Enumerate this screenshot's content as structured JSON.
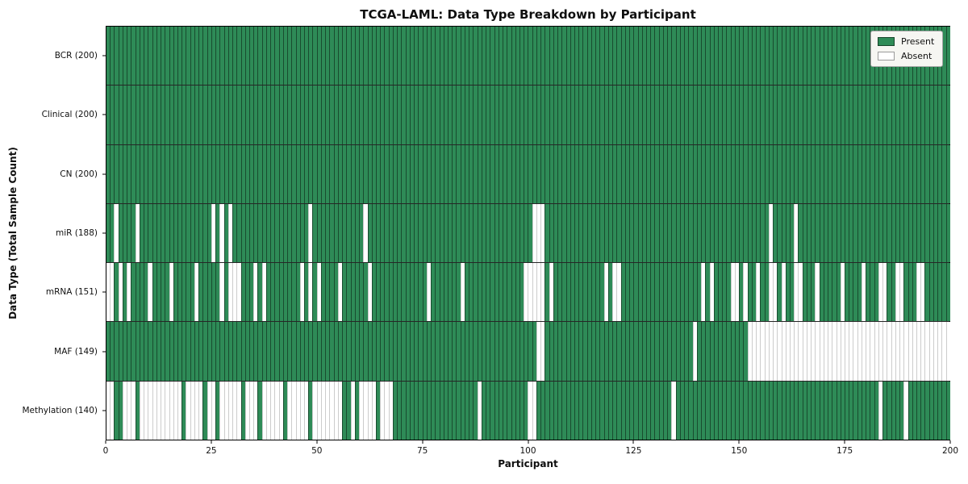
{
  "title": "TCGA-LAML: Data Type Breakdown by Participant",
  "xlabel": "Participant",
  "ylabel": "Data Type (Total Sample Count)",
  "legend": {
    "present_label": "Present",
    "absent_label": "Absent"
  },
  "colors": {
    "present": "#2e8b57",
    "absent": "#ffffff",
    "plot_border": "#000000",
    "legend_background": "#f6f6f2"
  },
  "chart_data": {
    "type": "heatmap",
    "title": "TCGA-LAML: Data Type Breakdown by Participant",
    "xlabel": "Participant",
    "ylabel": "Data Type (Total Sample Count)",
    "legend_entries": [
      "Present",
      "Absent"
    ],
    "legend_position": "upper right",
    "n_participants": 200,
    "x_range": [
      0,
      200
    ],
    "x_ticks": [
      0,
      25,
      50,
      75,
      100,
      125,
      150,
      175,
      200
    ],
    "rows": [
      {
        "label": "BCR (200)",
        "data_type": "BCR",
        "present_count": 200,
        "absent_participants": []
      },
      {
        "label": "Clinical (200)",
        "data_type": "Clinical",
        "present_count": 200,
        "absent_participants": []
      },
      {
        "label": "CN (200)",
        "data_type": "CN",
        "present_count": 200,
        "absent_participants": []
      },
      {
        "label": "miR (188)",
        "data_type": "miR",
        "present_count": 188,
        "absent_participants": [
          2,
          7,
          25,
          27,
          29,
          48,
          61,
          101,
          102,
          103,
          157,
          163
        ]
      },
      {
        "label": "mRNA (151)",
        "data_type": "mRNA",
        "present_count": 151,
        "absent_participants": [
          0,
          1,
          3,
          5,
          10,
          15,
          21,
          27,
          29,
          30,
          31,
          35,
          37,
          46,
          48,
          50,
          55,
          62,
          76,
          84,
          99,
          100,
          101,
          102,
          103,
          105,
          118,
          120,
          121,
          141,
          143,
          148,
          149,
          151,
          154,
          157,
          158,
          160,
          163,
          164,
          168,
          174,
          179,
          183,
          184,
          187,
          188,
          192,
          193
        ]
      },
      {
        "label": "MAF (149)",
        "data_type": "MAF",
        "present_count": 149,
        "absent_participants": [
          102,
          103,
          139,
          152,
          153,
          154,
          155,
          156,
          157,
          158,
          159,
          160,
          161,
          162,
          163,
          164,
          165,
          166,
          167,
          168,
          169,
          170,
          171,
          172,
          173,
          174,
          175,
          176,
          177,
          178,
          179,
          180,
          181,
          182,
          183,
          184,
          185,
          186,
          187,
          188,
          189,
          190,
          191,
          192,
          193,
          194,
          195,
          196,
          197,
          198,
          199
        ]
      },
      {
        "label": "Methylation (140)",
        "data_type": "Methylation",
        "present_count": 140,
        "absent_participants": [
          0,
          1,
          4,
          5,
          6,
          8,
          9,
          10,
          11,
          12,
          13,
          14,
          15,
          16,
          17,
          19,
          20,
          21,
          22,
          24,
          25,
          27,
          28,
          29,
          30,
          31,
          33,
          34,
          35,
          37,
          38,
          39,
          40,
          41,
          43,
          44,
          45,
          46,
          47,
          49,
          50,
          51,
          52,
          53,
          54,
          55,
          58,
          60,
          61,
          62,
          63,
          65,
          66,
          67,
          88,
          100,
          101,
          134,
          183,
          189
        ]
      }
    ]
  }
}
